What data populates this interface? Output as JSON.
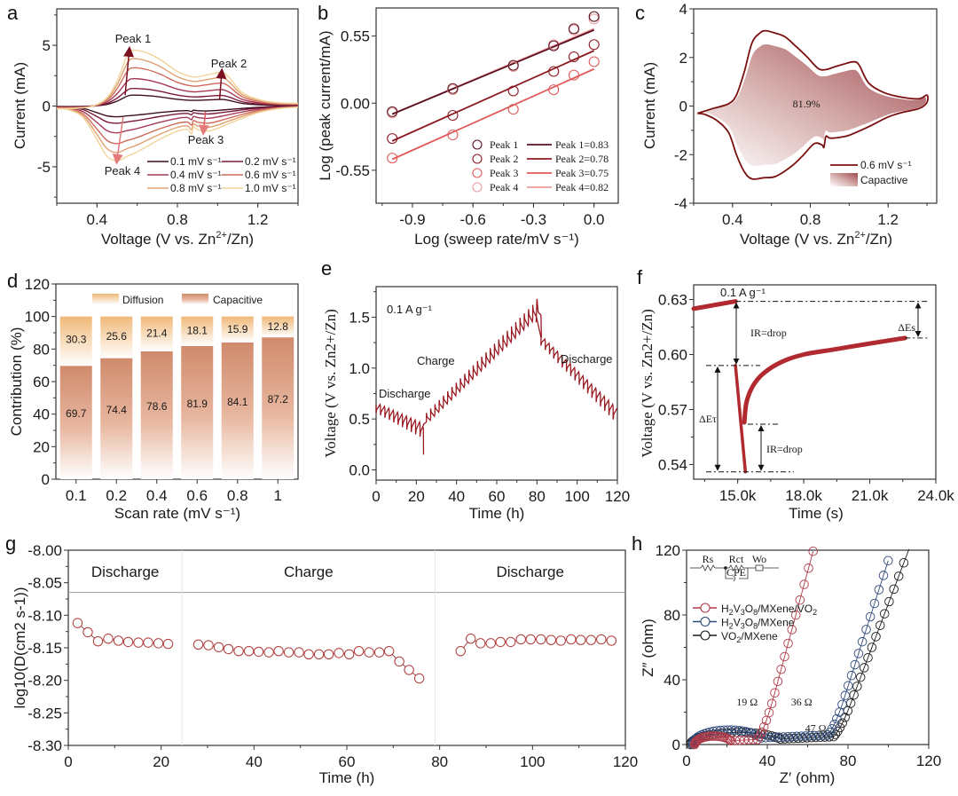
{
  "panel_labels": [
    "a",
    "b",
    "c",
    "d",
    "e",
    "f",
    "g",
    "h"
  ],
  "chart_data": [
    {
      "id": "a",
      "type": "line",
      "title": "",
      "xlabel": "Voltage (V vs. Zn2+/Zn)",
      "xlabel_main": "Voltage (V vs. Zn",
      "xlabel_sup": "2+",
      "xlabel_tail": "/Zn)",
      "ylabel": "Current (mA)",
      "xlim": [
        0.2,
        1.4
      ],
      "ylim": [
        -8,
        8
      ],
      "xticks": [
        0.4,
        0.8,
        1.2
      ],
      "xtick_labels": [
        "0.4",
        "0.8",
        "1.2"
      ],
      "yticks": [
        -5,
        0,
        5
      ],
      "ytick_labels": [
        "-5",
        "0",
        "5"
      ],
      "annotations": [
        "Peak 1",
        "Peak 2",
        "Peak 3",
        "Peak 4"
      ],
      "legend_position": "bottom-right",
      "series": [
        {
          "name": "0.1 mV s⁻¹",
          "color": "#3b0f1e",
          "scale": 0.9
        },
        {
          "name": "0.2 mV s⁻¹",
          "color": "#7a1a3a",
          "scale": 1.45
        },
        {
          "name": "0.4 mV s⁻¹",
          "color": "#a53a55",
          "scale": 2.25
        },
        {
          "name": "0.6 mV s⁻¹",
          "color": "#d06a5a",
          "scale": 3.15
        },
        {
          "name": "0.8 mV s⁻¹",
          "color": "#e0a070",
          "scale": 3.9
        },
        {
          "name": "1.0 mV s⁻¹",
          "color": "#f0d49a",
          "scale": 4.6
        }
      ],
      "shape": {
        "anodic_x": [
          0.2,
          0.3,
          0.38,
          0.45,
          0.5,
          0.55,
          0.58,
          0.65,
          0.72,
          0.8,
          0.88,
          0.95,
          1.02,
          1.06,
          1.12,
          1.2,
          1.3,
          1.4
        ],
        "anodic_y": [
          -0.05,
          -0.04,
          0.0,
          0.15,
          0.45,
          0.9,
          1.0,
          0.95,
          0.82,
          0.62,
          0.52,
          0.56,
          0.6,
          0.5,
          0.25,
          0.12,
          0.06,
          0.05
        ],
        "cathodic_x": [
          1.4,
          1.3,
          1.2,
          1.1,
          1.0,
          0.95,
          0.9,
          0.88,
          0.87,
          0.85,
          0.8,
          0.72,
          0.65,
          0.6,
          0.55,
          0.5,
          0.45,
          0.4,
          0.33,
          0.25,
          0.2
        ],
        "cathodic_y": [
          -0.02,
          -0.05,
          -0.12,
          -0.25,
          -0.4,
          -0.45,
          -0.42,
          -0.38,
          -0.5,
          -0.42,
          -0.45,
          -0.58,
          -0.72,
          -0.82,
          -0.9,
          -0.98,
          -0.9,
          -0.6,
          -0.2,
          -0.06,
          -0.05
        ]
      }
    },
    {
      "id": "b",
      "type": "scatter",
      "xlabel": "Log (sweep rate/mV s⁻¹)",
      "ylabel": "Log (peak current/mA)",
      "xlim": [
        -1.08,
        0.12
      ],
      "ylim": [
        -0.82,
        0.78
      ],
      "xticks": [
        -0.9,
        -0.6,
        -0.3,
        0.0
      ],
      "xtick_labels": [
        "-0.9",
        "-0.6",
        "-0.3",
        "0.0"
      ],
      "yticks": [
        -0.55,
        0.0,
        0.55
      ],
      "ytick_labels": [
        "-0.55",
        "0.00",
        "0.55"
      ],
      "x": [
        -1.0,
        -0.7,
        -0.4,
        -0.2,
        -0.1,
        0.0
      ],
      "legend_position": "bottom-right",
      "series": [
        {
          "name": "Peak 1",
          "fit_label": "Peak 1=0.83",
          "color": "#5a1020",
          "values": [
            -0.07,
            0.12,
            0.31,
            0.47,
            0.61,
            0.71
          ],
          "fit": [
            -0.09,
            0.6
          ]
        },
        {
          "name": "Peak 2",
          "fit_label": "Peak 2=0.78",
          "color": "#8a1a22",
          "values": [
            -0.29,
            -0.1,
            0.1,
            0.26,
            0.38,
            0.48
          ],
          "fit": [
            -0.31,
            0.43
          ]
        },
        {
          "name": "Peak 3",
          "fit_label": "Peak 3=0.75",
          "color": "#e05a5a",
          "values": [
            -0.45,
            -0.26,
            -0.05,
            0.11,
            0.23,
            0.34
          ],
          "fit": [
            -0.46,
            0.28
          ]
        },
        {
          "name": "Peak 4",
          "fit_label": "Peak 4=0.82",
          "color": "#eb9a9a",
          "values": [
            -0.08,
            0.11,
            0.3,
            0.48,
            0.6,
            0.69
          ],
          "fit": [
            -0.09,
            0.61
          ]
        }
      ]
    },
    {
      "id": "c",
      "type": "area",
      "xlabel": "Voltage (V vs. Zn2+/Zn)",
      "xlabel_main": "Voltage (V vs. Zn",
      "xlabel_sup": "2+",
      "xlabel_tail": "/Zn)",
      "ylabel": "Current (mA)",
      "xlim": [
        0.2,
        1.45
      ],
      "ylim": [
        -4,
        4
      ],
      "xticks": [
        0.4,
        0.8,
        1.2
      ],
      "xtick_labels": [
        "0.4",
        "0.8",
        "1.2"
      ],
      "yticks": [
        -4,
        -2,
        0,
        2,
        4
      ],
      "ytick_labels": [
        "-4",
        "-2",
        "0",
        "2",
        "4"
      ],
      "inner_label": "81.9%",
      "legend_position": "bottom-right",
      "series": [
        {
          "name": "0.6 mV s⁻¹",
          "color": "#7a1010",
          "x": [
            0.22,
            0.3,
            0.38,
            0.42,
            0.46,
            0.5,
            0.54,
            0.57,
            0.62,
            0.67,
            0.72,
            0.78,
            0.84,
            0.88,
            0.92,
            0.97,
            1.02,
            1.05,
            1.1,
            1.18,
            1.28,
            1.36,
            1.4,
            1.4,
            1.36,
            1.28,
            1.2,
            1.1,
            1.0,
            0.94,
            0.9,
            0.88,
            0.87,
            0.86,
            0.82,
            0.76,
            0.7,
            0.62,
            0.56,
            0.5,
            0.46,
            0.42,
            0.38,
            0.32,
            0.26,
            0.22
          ],
          "y": [
            -0.3,
            -0.1,
            0.1,
            0.45,
            1.4,
            2.6,
            3.0,
            3.1,
            3.0,
            2.85,
            2.5,
            2.05,
            1.55,
            1.5,
            1.6,
            1.72,
            1.82,
            1.7,
            0.95,
            0.55,
            0.35,
            0.3,
            0.45,
            0.15,
            -0.1,
            -0.25,
            -0.45,
            -0.85,
            -1.2,
            -1.3,
            -1.32,
            -1.25,
            -1.7,
            -1.6,
            -1.55,
            -2.05,
            -2.5,
            -2.9,
            -2.95,
            -3.0,
            -2.7,
            -2.0,
            -1.1,
            -0.6,
            -0.35,
            -0.3
          ]
        },
        {
          "name": "Capactive",
          "color": "#a9545a",
          "scale": 0.819
        }
      ]
    },
    {
      "id": "d",
      "type": "bar",
      "xlabel": "Scan rate (mV s⁻¹)",
      "ylabel": "Contribution (%)",
      "ylim": [
        0,
        120
      ],
      "yticks": [
        0,
        20,
        40,
        60,
        80,
        100,
        120
      ],
      "ytick_labels": [
        "0",
        "20",
        "40",
        "60",
        "80",
        "100",
        "120"
      ],
      "categories": [
        "0.1",
        "0.2",
        "0.4",
        "0.6",
        "0.8",
        "1"
      ],
      "legend_position": "top",
      "series": [
        {
          "name": "Capacitive",
          "color": "#d4906e",
          "values": [
            69.7,
            74.4,
            78.6,
            81.9,
            84.1,
            87.2
          ],
          "labels": [
            "69.7",
            "74.4",
            "78.6",
            "81.9",
            "84.1",
            "87.2"
          ]
        },
        {
          "name": "Diffusion",
          "color": "#f0c080",
          "values": [
            30.3,
            25.6,
            21.4,
            18.1,
            15.9,
            12.8
          ],
          "labels": [
            "30.3",
            "25.6",
            "21.4",
            "18.1",
            "15.9",
            "12.8"
          ]
        }
      ]
    },
    {
      "id": "e",
      "type": "line",
      "xlabel": "Time (h)",
      "ylabel": "Voltage (V vs. Zn2+/Zn)",
      "xlim": [
        0,
        120
      ],
      "ylim": [
        -0.1,
        1.8
      ],
      "xticks": [
        0,
        20,
        40,
        60,
        80,
        100,
        120
      ],
      "xtick_labels": [
        "0",
        "20",
        "40",
        "60",
        "80",
        "100",
        "120"
      ],
      "yticks": [
        0.0,
        0.5,
        1.0,
        1.5
      ],
      "ytick_labels": [
        "0.0",
        "0.5",
        "1.0",
        "1.5"
      ],
      "annotations": [
        "0.1 A g⁻¹",
        "Discharge",
        "Charge",
        "Discharge"
      ],
      "color": "#9a1820",
      "segments": [
        {
          "phase": "discharge",
          "t_start": 0,
          "t_end": 24,
          "v_start": 0.64,
          "v_end": 0.43,
          "pulses": 11,
          "spike": -0.08
        },
        {
          "phase": "charge",
          "t_start": 25,
          "t_end": 80,
          "v_start": 0.47,
          "v_end": 1.52,
          "pulses": 26,
          "spike": 0.09
        },
        {
          "phase": "discharge",
          "t_start": 82,
          "t_end": 120,
          "v_start": 1.3,
          "v_end": 0.58,
          "pulses": 18,
          "spike": -0.08
        }
      ]
    },
    {
      "id": "f",
      "type": "scatter",
      "xlabel": "Time (s)",
      "ylabel": "Voltage (V vs. Zn2+/Zn)",
      "xlim": [
        13000,
        24000
      ],
      "ylim": [
        0.532,
        0.638
      ],
      "xticks": [
        15000,
        18000,
        21000,
        24000
      ],
      "xtick_labels": [
        "15.0k",
        "18.0k",
        "21.0k",
        "24.0k"
      ],
      "yticks": [
        0.54,
        0.57,
        0.6,
        0.63
      ],
      "ytick_labels": [
        "0.54",
        "0.57",
        "0.60",
        "0.63"
      ],
      "annotations": [
        "0.1 A g⁻¹",
        "IR=drop",
        "IR=drop",
        "ΔEs",
        "ΔEτ"
      ],
      "color": "#b02a30",
      "levels": {
        "v_top": 0.629,
        "v_after_ir": 0.594,
        "v_bottom": 0.536,
        "v_relax_start": 0.562,
        "v_end": 0.609
      },
      "segments": {
        "pre_x": [
          13000,
          14900
        ],
        "pre_y": [
          0.625,
          0.629
        ],
        "pulse_x": [
          14900,
          15350
        ],
        "pulse_y": [
          0.594,
          0.536
        ],
        "relax_x": [
          15300,
          15400,
          15700,
          16200,
          17000,
          18000,
          19500,
          21000,
          22600
        ],
        "relax_y": [
          0.563,
          0.574,
          0.583,
          0.59,
          0.596,
          0.6,
          0.603,
          0.606,
          0.609
        ]
      }
    },
    {
      "id": "g",
      "type": "scatter",
      "xlabel": "Time (h)",
      "ylabel": "log10(D(cm2 s-1))",
      "xlim": [
        0,
        120
      ],
      "ylim": [
        -8.3,
        -8.0
      ],
      "xticks": [
        0,
        20,
        40,
        60,
        80,
        100,
        120
      ],
      "xtick_labels": [
        "0",
        "20",
        "40",
        "60",
        "80",
        "100",
        "120"
      ],
      "yticks": [
        -8.0,
        -8.05,
        -8.1,
        -8.15,
        -8.2,
        -8.25,
        -8.3
      ],
      "ytick_labels": [
        "-8.00",
        "-8.05",
        "-8.10",
        "-8.15",
        "-8.20",
        "-8.25",
        "-8.30"
      ],
      "header_line": -8.065,
      "regions": [
        {
          "label": "Discharge",
          "x_start": 0,
          "x_end": 24.5
        },
        {
          "label": "Charge",
          "x_start": 24.5,
          "x_end": 79
        },
        {
          "label": "Discharge",
          "x_start": 79,
          "x_end": 120
        }
      ],
      "color": "#b03a3a",
      "series": [
        {
          "name": "Discharge 1",
          "x": [
            2.0,
            4.2,
            6.4,
            8.6,
            10.8,
            12.9,
            15.1,
            17.2,
            19.4,
            21.5
          ],
          "values": [
            -8.112,
            -8.126,
            -8.14,
            -8.136,
            -8.139,
            -8.141,
            -8.142,
            -8.142,
            -8.143,
            -8.144
          ]
        },
        {
          "name": "Charge",
          "x": [
            28.0,
            30.2,
            32.4,
            34.5,
            36.7,
            38.9,
            41.0,
            43.2,
            45.3,
            47.5,
            49.7,
            51.8,
            54.0,
            56.1,
            58.3,
            60.5,
            62.6,
            64.8,
            67.0,
            69.1,
            71.3,
            73.4,
            75.6
          ],
          "values": [
            -8.145,
            -8.146,
            -8.149,
            -8.152,
            -8.155,
            -8.155,
            -8.156,
            -8.157,
            -8.155,
            -8.157,
            -8.157,
            -8.16,
            -8.16,
            -8.16,
            -8.158,
            -8.16,
            -8.155,
            -8.157,
            -8.157,
            -8.155,
            -8.171,
            -8.184,
            -8.197
          ]
        },
        {
          "name": "Discharge 2",
          "x": [
            84.5,
            86.7,
            88.8,
            91.0,
            93.1,
            95.3,
            97.5,
            99.6,
            101.8,
            104.0,
            106.1,
            108.3,
            110.4,
            112.6,
            114.8,
            117.0
          ],
          "values": [
            -8.155,
            -8.136,
            -8.143,
            -8.143,
            -8.141,
            -8.141,
            -8.137,
            -8.137,
            -8.137,
            -8.138,
            -8.139,
            -8.137,
            -8.138,
            -8.138,
            -8.137,
            -8.139
          ]
        }
      ]
    },
    {
      "id": "h",
      "type": "scatter",
      "xlabel": "Z′ (ohm)",
      "ylabel": "Z″ (ohm)",
      "xlim": [
        0,
        120
      ],
      "ylim": [
        0,
        120
      ],
      "xticks": [
        0,
        40,
        80,
        120
      ],
      "xtick_labels": [
        "0",
        "40",
        "80",
        "120"
      ],
      "yticks": [
        0,
        40,
        80,
        120
      ],
      "ytick_labels": [
        "0",
        "40",
        "80",
        "120"
      ],
      "legend_position": "top-left",
      "circuit_labels": [
        "Rs",
        "Rct",
        "Wo",
        "CPE"
      ],
      "annotations": [
        "19 Ω",
        "36 Ω",
        "47 Ω"
      ],
      "series": [
        {
          "name": "H2V3O8/MXene/VO2",
          "legend": [
            "H",
            "2",
            "V",
            "3",
            "O",
            "8",
            "/MXene/VO",
            "2"
          ],
          "color": "#b03a48",
          "r_label": "19 Ω",
          "rs": 4,
          "rct": 19,
          "semi_h": 0.55,
          "tail_x0": 34,
          "tail_slope": 4.6
        },
        {
          "name": "H2V3O8/MXene",
          "legend": [
            "H",
            "2",
            "V",
            "3",
            "O",
            "8",
            "/MXene",
            ""
          ],
          "color": "#2e4a7a",
          "r_label": "36 Ω",
          "rs": 3,
          "rct": 36,
          "semi_h": 0.5,
          "tail_x0": 68,
          "tail_slope": 3.9
        },
        {
          "name": "VO2/MXene",
          "legend": [
            "VO",
            "2",
            "/MXene",
            "",
            "",
            "",
            "",
            ""
          ],
          "color": "#1a1a1a",
          "r_label": "47 Ω",
          "rs": 2,
          "rct": 47,
          "semi_h": 0.32,
          "tail_x0": 72,
          "tail_slope": 3.3
        }
      ]
    }
  ]
}
